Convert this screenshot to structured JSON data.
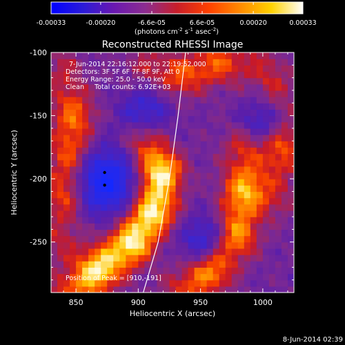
{
  "chart_data": {
    "type": "heatmap",
    "title": "Reconstructed RHESSI Image",
    "xlabel": "Heliocentric X (arcsec)",
    "ylabel": "Heliocentric Y (arcsec)",
    "xlim": [
      830,
      1025
    ],
    "ylim": [
      -290,
      -100
    ],
    "x_ticks": [
      850,
      900,
      950,
      1000
    ],
    "y_ticks": [
      -100,
      -150,
      -200,
      -250
    ],
    "colorbar": {
      "range": [
        -0.00033,
        0.00033
      ],
      "ticks": [
        -0.00033,
        -0.0002,
        -6.6e-05,
        6.6e-05,
        0.0002,
        0.00033
      ],
      "tick_labels": [
        "-0.00033",
        "-0.00020",
        "-6.6e-05",
        "6.6e-05",
        "0.00020",
        "0.00033"
      ],
      "unit_text": "(photons cm",
      "unit_exp1": "-2",
      "unit_mid": " s",
      "unit_exp2": "-1",
      "unit_end": " asec",
      "unit_exp3": "-2",
      "unit_close": ")",
      "colors": [
        "#0000ff",
        "#2a1ad8",
        "#6a18b0",
        "#8c2d90",
        "#c81e2a",
        "#ff4000",
        "#ff8a00",
        "#ffd200",
        "#ffffff"
      ]
    },
    "annotations": {
      "time": "7-Jun-2014 22:16:12.000 to 22:19:52.000",
      "detectors": "Detectors: 3F 5F 6F 7F 8F 9F, Att 0",
      "energy": "Energy Range: 25.0 - 50.0 keV",
      "clean": "Clean     Total counts: 6.92E+03",
      "peak": "Position of Peak = [910,-191]"
    },
    "peak": [
      910,
      -191
    ],
    "limb_curve": [
      [
        938,
        -100
      ],
      [
        932,
        -150
      ],
      [
        925,
        -200
      ],
      [
        916,
        -250
      ],
      [
        904,
        -290
      ]
    ],
    "structures": [
      {
        "name": "left-arc",
        "points": [
          [
            840,
            -115
          ],
          [
            848,
            -150
          ],
          [
            845,
            -180
          ],
          [
            842,
            -210
          ],
          [
            838,
            -250
          ]
        ],
        "intensity": 0.55
      },
      {
        "name": "central-arc",
        "points": [
          [
            905,
            -170
          ],
          [
            918,
            -195
          ],
          [
            912,
            -225
          ],
          [
            895,
            -250
          ],
          [
            868,
            -272
          ],
          [
            845,
            -290
          ]
        ],
        "intensity": 0.95
      },
      {
        "name": "right-arc",
        "points": [
          [
            985,
            -175
          ],
          [
            985,
            -210
          ],
          [
            978,
            -245
          ],
          [
            958,
            -272
          ],
          [
            935,
            -288
          ]
        ],
        "intensity": 0.75
      },
      {
        "name": "top-blob",
        "points": [
          [
            905,
            -110
          ],
          [
            935,
            -118
          ],
          [
            965,
            -108
          ],
          [
            1000,
            -110
          ]
        ],
        "intensity": 0.5
      },
      {
        "name": "right-edge",
        "points": [
          [
            1012,
            -130
          ],
          [
            1015,
            -175
          ],
          [
            1010,
            -215
          ]
        ],
        "intensity": 0.5
      }
    ],
    "negative_regions": [
      {
        "name": "left-blue-hole",
        "center": [
          873,
          -202
        ],
        "radius": 18,
        "intensity": -0.9
      },
      {
        "name": "upper-blue",
        "center": [
          905,
          -148
        ],
        "radius": 14,
        "intensity": -0.5
      },
      {
        "name": "lower-right-blue",
        "center": [
          955,
          -250
        ],
        "radius": 14,
        "intensity": -0.6
      },
      {
        "name": "right-blue",
        "center": [
          1000,
          -155
        ],
        "radius": 12,
        "intensity": -0.5
      }
    ],
    "black_dots": [
      [
        873,
        -195
      ],
      [
        873,
        -205
      ]
    ]
  },
  "footer": {
    "date": "8-Jun-2014 02:39"
  }
}
